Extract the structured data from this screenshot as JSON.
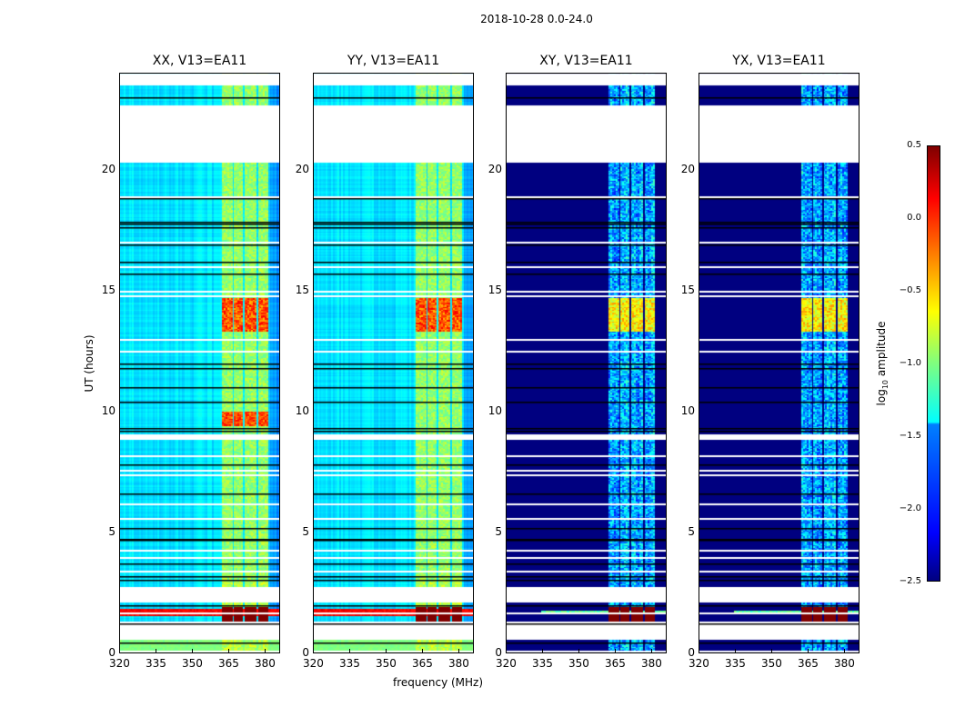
{
  "chart_data": {
    "type": "heatmap",
    "title": "2018-10-28 0.0-24.0",
    "xlabel": "frequency (MHz)",
    "ylabel": "UT (hours)",
    "xlim": [
      320,
      386.4
    ],
    "ylim": [
      0,
      24
    ],
    "xticks": [
      320,
      335,
      350,
      365,
      380
    ],
    "xtick_labels": [
      "320",
      "335",
      "350",
      "365",
      "380"
    ],
    "yticks": [
      0,
      5,
      10,
      15,
      20
    ],
    "ytick_labels": [
      "0",
      "5",
      "10",
      "15",
      "20"
    ],
    "panels": [
      {
        "title": "XX, V13=EA11",
        "kind": "parallel"
      },
      {
        "title": "YY, V13=EA11",
        "kind": "parallel"
      },
      {
        "title": "XY, V13=EA11",
        "kind": "cross"
      },
      {
        "title": "YX, V13=EA11",
        "kind": "cross"
      }
    ],
    "colorbar": {
      "label_prefix": "log",
      "label_sub": "10",
      "label_suffix": " amplitude",
      "range": [
        -2.5,
        0.5
      ],
      "ticks": [
        0.5,
        0.0,
        -0.5,
        -1.0,
        -1.5,
        -2.0,
        -2.5
      ],
      "tick_labels": [
        "0.5",
        "0.0",
        "−0.5",
        "−1.0",
        "−1.5",
        "−2.0",
        "−2.5"
      ],
      "colormap": "jet"
    },
    "no_data_intervals_hours": [
      [
        23.45,
        24.0
      ],
      [
        20.3,
        22.7
      ],
      [
        8.8,
        9.05
      ],
      [
        2.1,
        2.74
      ],
      [
        0.56,
        1.31
      ]
    ],
    "flagged_lines_hours": [
      23.0,
      18.8,
      17.6,
      17.75,
      17.85,
      16.9,
      16.2,
      15.7,
      12.0,
      11.8,
      11.0,
      10.4,
      9.2,
      9.3,
      7.8,
      6.6,
      5.2,
      4.7,
      4.75,
      3.7,
      3.2,
      3.05,
      2.0,
      1.25,
      0.45
    ],
    "blank_lines_hours": [
      18.9,
      17.0,
      16.0,
      15.0,
      14.8,
      13.0,
      12.5,
      8.2,
      7.6,
      7.4,
      6.2,
      5.6,
      4.3,
      4.0,
      3.4,
      1.7,
      0.1
    ],
    "bright_bands_mhz": [
      [
        362.4,
        366.9
      ],
      [
        367.5,
        371.3
      ],
      [
        372.0,
        376.5
      ],
      [
        377.3,
        381.8
      ]
    ],
    "strong_rfi_hours": [
      [
        1.2,
        1.95
      ],
      [
        13.3,
        14.7
      ],
      [
        9.4,
        10.0
      ]
    ]
  }
}
